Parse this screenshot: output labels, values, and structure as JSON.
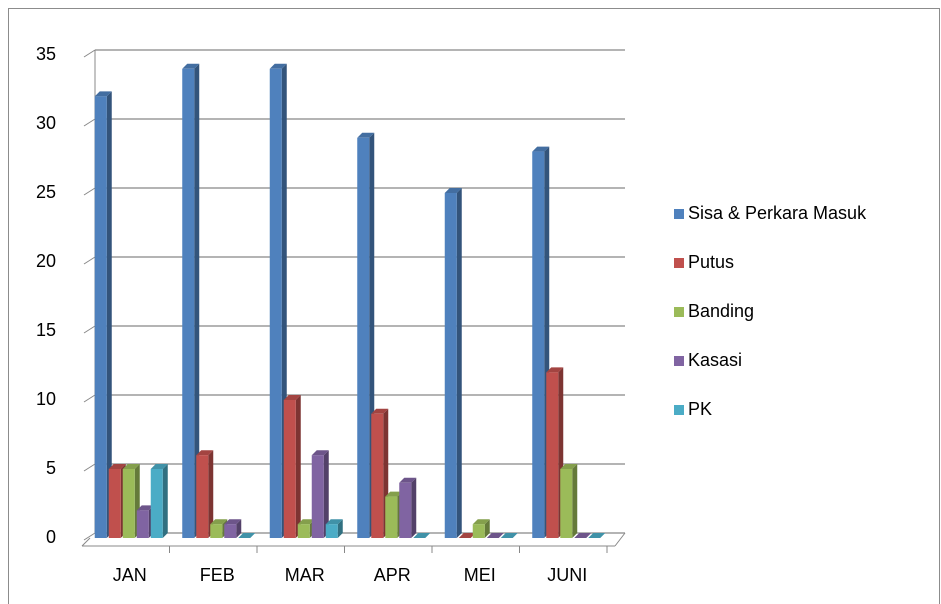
{
  "chart_data": {
    "type": "bar",
    "categories": [
      "JAN",
      "FEB",
      "MAR",
      "APR",
      "MEI",
      "JUNI"
    ],
    "series": [
      {
        "name": "Sisa & Perkara Masuk",
        "color": "#4f81bd",
        "values": [
          32,
          34,
          34,
          29,
          25,
          28
        ]
      },
      {
        "name": "Putus",
        "color": "#c0504d",
        "values": [
          5,
          6,
          10,
          9,
          0,
          12
        ]
      },
      {
        "name": "Banding",
        "color": "#9bbb59",
        "values": [
          5,
          1,
          1,
          3,
          1,
          5
        ]
      },
      {
        "name": "Kasasi",
        "color": "#8064a2",
        "values": [
          2,
          1,
          6,
          4,
          0,
          0
        ]
      },
      {
        "name": "PK",
        "color": "#4bacc6",
        "values": [
          5,
          0,
          1,
          0,
          0,
          0
        ]
      }
    ],
    "ylim": [
      0,
      35
    ],
    "yticks": [
      0,
      5,
      10,
      15,
      20,
      25,
      30,
      35
    ],
    "grid": true,
    "legend": "right"
  }
}
